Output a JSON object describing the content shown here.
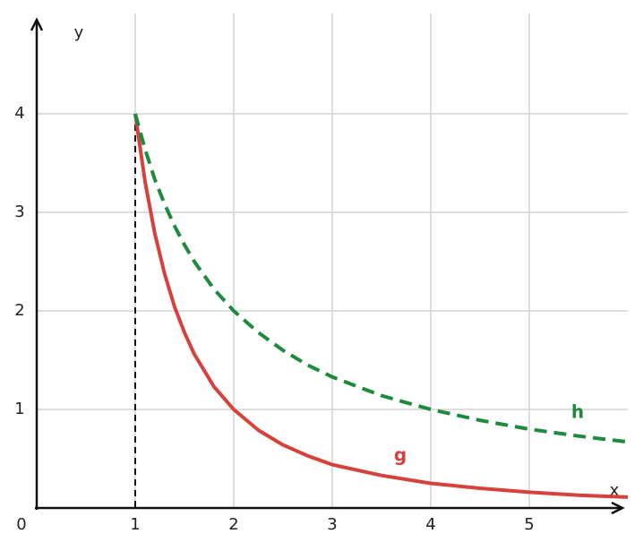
{
  "chart_data": {
    "type": "line",
    "x_label": "x",
    "y_label": "y",
    "x": [
      1,
      1.1,
      1.2,
      1.3,
      1.4,
      1.5,
      1.6,
      1.8,
      2,
      2.25,
      2.5,
      2.75,
      3,
      3.5,
      4,
      4.5,
      5,
      5.5,
      6
    ],
    "series": [
      {
        "name": "g",
        "color": "#d6423b",
        "dash": false,
        "values": [
          4,
          3.31,
          2.78,
          2.37,
          2.04,
          1.78,
          1.56,
          1.23,
          1,
          0.79,
          0.64,
          0.53,
          0.44,
          0.33,
          0.25,
          0.2,
          0.16,
          0.13,
          0.11
        ]
      },
      {
        "name": "h",
        "color": "#1e8a3c",
        "dash": true,
        "values": [
          4,
          3.64,
          3.33,
          3.08,
          2.86,
          2.67,
          2.5,
          2.22,
          2,
          1.78,
          1.6,
          1.45,
          1.33,
          1.14,
          1,
          0.89,
          0.8,
          0.73,
          0.67
        ]
      }
    ],
    "vline_x": 1,
    "xlim": [
      0,
      6
    ],
    "ylim": [
      0,
      5
    ],
    "xticks": [
      0,
      1,
      2,
      3,
      4,
      5
    ],
    "yticks": [
      1,
      2,
      3,
      4
    ],
    "grid": true
  }
}
